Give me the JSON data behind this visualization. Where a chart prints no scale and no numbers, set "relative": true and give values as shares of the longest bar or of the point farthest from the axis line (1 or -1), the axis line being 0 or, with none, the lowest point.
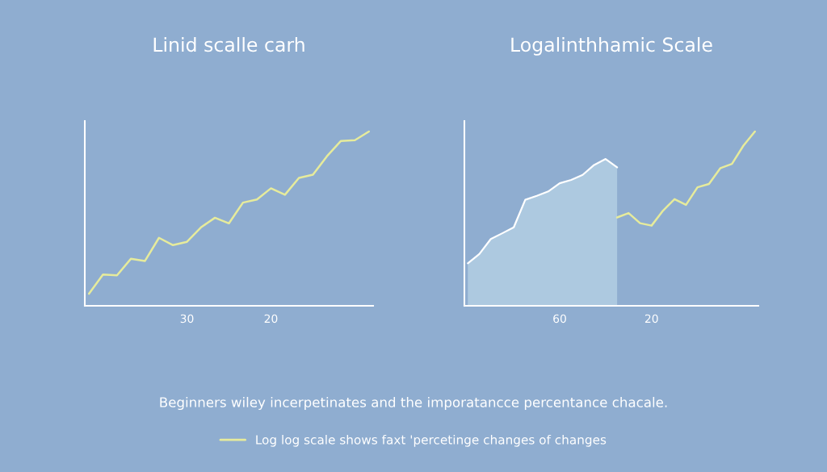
{
  "chart_data": [
    {
      "type": "line",
      "title": "Linid scalle carh",
      "relative": true,
      "categories": [
        null,
        null,
        null,
        null,
        null,
        null,
        null,
        "30",
        null,
        null,
        null,
        null,
        null,
        "20",
        null,
        null,
        null,
        null,
        null,
        null,
        null
      ],
      "series": [
        {
          "color": "#e6eb9c",
          "values": [
            0.069,
            0.179,
            0.175,
            0.27,
            0.257,
            0.39,
            0.348,
            0.367,
            0.45,
            0.505,
            0.473,
            0.592,
            0.61,
            0.674,
            0.637,
            0.734,
            0.752,
            0.858,
            0.946,
            0.95,
            1
          ]
        }
      ],
      "annotations": [
        "Beginners wiley incerpetinates and the imporatancce percentance chacale."
      ]
    },
    {
      "type": "line",
      "title": "Logalinthhamic Scale",
      "relative": true,
      "categories": [
        null,
        null,
        null,
        null,
        null,
        null,
        null,
        null,
        "60",
        null,
        null,
        null,
        null,
        null,
        null,
        null,
        "20",
        null,
        null,
        null,
        null,
        null,
        null,
        null,
        null,
        null
      ],
      "legend": "bottom",
      "series": [
        {
          "type": "area",
          "color": "#adc9e0",
          "values": [
            0.244,
            0.297,
            0.383,
            0.416,
            0.45,
            0.608,
            0.631,
            0.656,
            0.703,
            0.722,
            0.751,
            0.808,
            0.842,
            0.794,
            null,
            null,
            null,
            null,
            null,
            null,
            null,
            null,
            null,
            null,
            null,
            null
          ]
        },
        {
          "name": "Log log scale shows faxt 'percetinge changes of changes",
          "color": "#e6eb9c",
          "values": [
            null,
            null,
            null,
            null,
            null,
            null,
            null,
            null,
            null,
            null,
            null,
            null,
            null,
            0.507,
            0.532,
            0.474,
            0.46,
            0.546,
            0.612,
            0.579,
            0.68,
            0.699,
            0.79,
            0.814,
            0.919,
            1
          ]
        }
      ]
    }
  ]
}
